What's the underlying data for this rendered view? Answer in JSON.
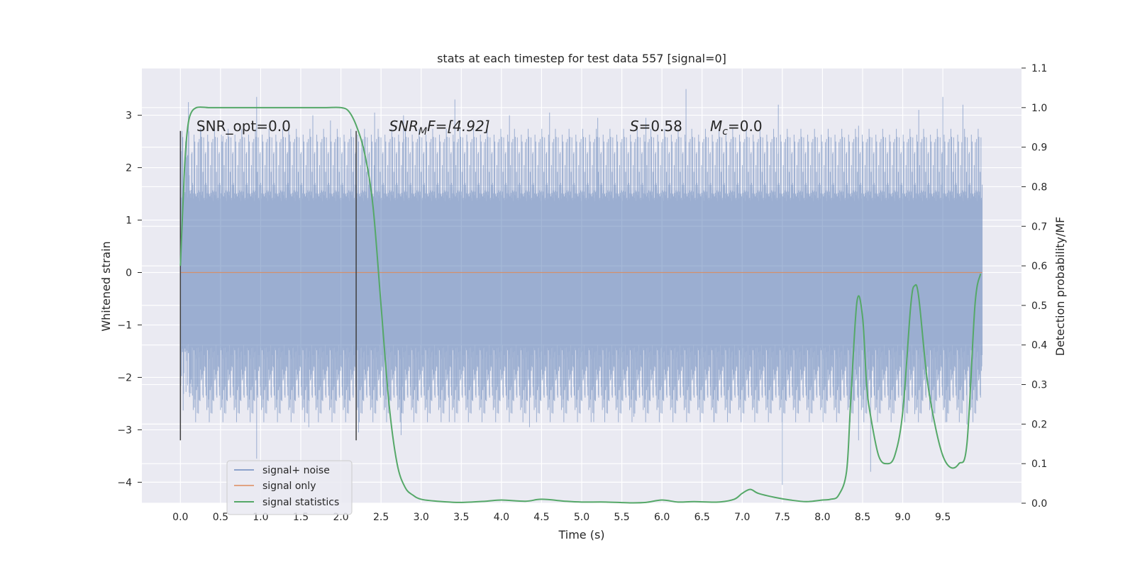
{
  "chart_data": {
    "type": "line",
    "title": "stats at each timestep for test data 557 [signal=0]",
    "xlabel": "Time (s)",
    "ylabel": "Whitened strain",
    "ylabel_right": "Detection probability/MF",
    "xlim": [
      -0.48,
      10.48
    ],
    "ylim": [
      -4.4,
      3.9
    ],
    "ylim_right": [
      -0.0,
      1.1
    ],
    "xticks": [
      0.0,
      0.5,
      1.0,
      1.5,
      2.0,
      2.5,
      3.0,
      3.5,
      4.0,
      4.5,
      5.0,
      5.5,
      6.0,
      6.5,
      7.0,
      7.5,
      8.0,
      8.5,
      9.0,
      9.5
    ],
    "xtick_labels": [
      "0.0",
      "0.5",
      "1.0",
      "1.5",
      "2.0",
      "2.5",
      "3.0",
      "3.5",
      "4.0",
      "4.5",
      "5.0",
      "5.5",
      "6.0",
      "6.5",
      "7.0",
      "7.5",
      "8.0",
      "8.5",
      "9.0",
      "9.5"
    ],
    "yticks": [
      -4,
      -3,
      -2,
      -1,
      0,
      1,
      2,
      3
    ],
    "ytick_labels": [
      "−4",
      "−3",
      "−2",
      "−1",
      "0",
      "1",
      "2",
      "3"
    ],
    "yticks_right": [
      0.0,
      0.1,
      0.2,
      0.3,
      0.4,
      0.5,
      0.6,
      0.7,
      0.8,
      0.9,
      1.0,
      1.1
    ],
    "ytick_labels_right": [
      "0.0",
      "0.1",
      "0.2",
      "0.3",
      "0.4",
      "0.5",
      "0.6",
      "0.7",
      "0.8",
      "0.9",
      "1.0",
      "1.1"
    ],
    "grid": true,
    "legend_position": "lower-left",
    "colors": {
      "background": "#eaeaf2",
      "grid": "#ffffff",
      "noise": "#4c72b0",
      "signal": "#dd8452",
      "stats": "#55a868",
      "marker": "#404040"
    },
    "legend": [
      {
        "label": "signal+ noise",
        "color": "#4c72b0"
      },
      {
        "label": "signal only",
        "color": "#dd8452"
      },
      {
        "label": "signal statistics",
        "color": "#55a868"
      }
    ],
    "annotations": {
      "snr_opt": "SNR_opt=0.0",
      "snr_mf_base": "SNR",
      "snr_mf_sub": "M",
      "snr_mf_rest": "F=[4.92]",
      "s_var": "S",
      "s_rest": "=0.58",
      "mc_var": "M",
      "mc_sub": "c",
      "mc_rest": "=0.0"
    },
    "annotation_anchor_x": [
      0.2,
      2.6,
      5.6,
      6.6
    ],
    "annotation_anchor_y": 2.7,
    "vertical_markers": [
      {
        "x": 0.0,
        "y0": -3.2,
        "y1": 2.7
      },
      {
        "x": 2.19,
        "y0": -3.2,
        "y1": 2.7
      }
    ],
    "series": [
      {
        "name": "signal+ noise",
        "type": "noise-band",
        "x_range": [
          0.0,
          9.99
        ],
        "sample_count": 2000,
        "core_amplitude": 1.5,
        "peak_max": 3.5,
        "peak_min": -4.05,
        "spikes": [
          {
            "x": 0.1,
            "y": 3.25
          },
          {
            "x": 0.25,
            "y": 2.75
          },
          {
            "x": 0.53,
            "y": 2.6
          },
          {
            "x": 0.95,
            "y": 3.35
          },
          {
            "x": 1.35,
            "y": 2.9
          },
          {
            "x": 1.65,
            "y": 3.0
          },
          {
            "x": 1.87,
            "y": 2.9
          },
          {
            "x": 2.42,
            "y": 3.05
          },
          {
            "x": 2.78,
            "y": 3.0
          },
          {
            "x": 3.42,
            "y": 3.3
          },
          {
            "x": 4.1,
            "y": 3.0
          },
          {
            "x": 4.6,
            "y": 3.05
          },
          {
            "x": 5.2,
            "y": 2.95
          },
          {
            "x": 5.8,
            "y": 2.95
          },
          {
            "x": 6.3,
            "y": 3.5
          },
          {
            "x": 7.45,
            "y": 3.2
          },
          {
            "x": 8.45,
            "y": 2.8
          },
          {
            "x": 9.2,
            "y": 3.1
          },
          {
            "x": 9.5,
            "y": 3.35
          },
          {
            "x": 9.75,
            "y": 3.2
          },
          {
            "x": 0.95,
            "y": -3.55
          },
          {
            "x": 1.6,
            "y": -2.95
          },
          {
            "x": 2.22,
            "y": -3.05
          },
          {
            "x": 2.75,
            "y": -3.1
          },
          {
            "x": 3.35,
            "y": -2.85
          },
          {
            "x": 4.35,
            "y": -2.95
          },
          {
            "x": 5.15,
            "y": -2.85
          },
          {
            "x": 5.65,
            "y": -2.75
          },
          {
            "x": 6.65,
            "y": -2.85
          },
          {
            "x": 7.5,
            "y": -4.05
          },
          {
            "x": 8.45,
            "y": -3.2
          },
          {
            "x": 8.6,
            "y": -3.8
          },
          {
            "x": 9.15,
            "y": -2.7
          },
          {
            "x": 9.55,
            "y": -2.85
          },
          {
            "x": 9.8,
            "y": -2.9
          }
        ]
      },
      {
        "name": "signal only",
        "x": [
          0.0,
          9.99
        ],
        "values": [
          0.0,
          0.0
        ]
      },
      {
        "name": "signal statistics",
        "axis": "right",
        "x": [
          0.0,
          0.05,
          0.08,
          0.12,
          0.2,
          0.35,
          0.5,
          1.0,
          1.5,
          1.8,
          2.0,
          2.1,
          2.2,
          2.3,
          2.4,
          2.5,
          2.6,
          2.7,
          2.8,
          2.9,
          3.0,
          3.2,
          3.5,
          3.8,
          4.0,
          4.3,
          4.5,
          4.8,
          5.0,
          5.3,
          5.6,
          5.8,
          6.0,
          6.2,
          6.4,
          6.7,
          6.9,
          7.0,
          7.1,
          7.2,
          7.4,
          7.6,
          7.8,
          8.0,
          8.1,
          8.2,
          8.3,
          8.35,
          8.43,
          8.5,
          8.55,
          8.6,
          8.7,
          8.8,
          8.9,
          9.0,
          9.1,
          9.15,
          9.2,
          9.3,
          9.4,
          9.5,
          9.6,
          9.7,
          9.8,
          9.9,
          9.97
        ],
        "values": [
          0.6,
          0.84,
          0.93,
          0.98,
          1.0,
          1.0,
          1.0,
          1.0,
          1.0,
          1.0,
          1.0,
          0.99,
          0.95,
          0.88,
          0.75,
          0.5,
          0.25,
          0.1,
          0.04,
          0.02,
          0.01,
          0.005,
          0.002,
          0.005,
          0.008,
          0.005,
          0.01,
          0.005,
          0.003,
          0.003,
          0.001,
          0.002,
          0.008,
          0.003,
          0.004,
          0.003,
          0.01,
          0.025,
          0.035,
          0.025,
          0.015,
          0.008,
          0.004,
          0.008,
          0.01,
          0.02,
          0.08,
          0.25,
          0.51,
          0.47,
          0.3,
          0.22,
          0.12,
          0.1,
          0.12,
          0.23,
          0.5,
          0.55,
          0.52,
          0.32,
          0.2,
          0.12,
          0.09,
          0.1,
          0.15,
          0.5,
          0.58
        ]
      }
    ]
  }
}
